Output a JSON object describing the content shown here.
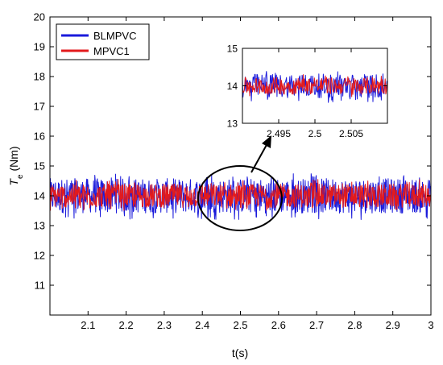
{
  "chart_data": [
    {
      "type": "line",
      "title": "",
      "xlabel": "t(s)",
      "ylabel_main": "T",
      "ylabel_sub": "e",
      "ylabel_unit": " (Nm)",
      "xlim": [
        2.0,
        3.0
      ],
      "ylim": [
        10.0,
        20.0
      ],
      "x_ticks": [
        2.1,
        2.2,
        2.3,
        2.4,
        2.5,
        2.6,
        2.7,
        2.8,
        2.9,
        3.0
      ],
      "x_tick_labels": [
        "2.1",
        "2.2",
        "2.3",
        "2.4",
        "2.5",
        "2.6",
        "2.7",
        "2.8",
        "2.9",
        "3"
      ],
      "y_ticks": [
        11,
        12,
        13,
        14,
        15,
        16,
        17,
        18,
        19,
        20
      ],
      "y_tick_labels": [
        "11",
        "12",
        "13",
        "14",
        "15",
        "16",
        "17",
        "18",
        "19",
        "20"
      ],
      "grid": false,
      "legend_position": "top-left",
      "series": [
        {
          "name": "BLMPVC",
          "color": "#1a1adb",
          "mean": 14.0,
          "ripple_min": 13.2,
          "ripple_max": 14.75
        },
        {
          "name": "MPVC1",
          "color": "#e31a1c",
          "mean": 14.0,
          "ripple_min": 13.5,
          "ripple_max": 14.55
        }
      ],
      "annotations": [
        {
          "type": "ellipse",
          "center": [
            2.5,
            14.0
          ],
          "note": "zoomed region"
        },
        {
          "type": "arrow",
          "from": [
            2.5,
            15.0
          ],
          "to": [
            2.58,
            17.2
          ]
        }
      ]
    },
    {
      "type": "line",
      "title": "",
      "xlim": [
        2.49,
        2.51
      ],
      "ylim": [
        13.0,
        15.0
      ],
      "x_ticks": [
        2.495,
        2.5,
        2.505
      ],
      "x_tick_labels": [
        "2.495",
        "2.5",
        "2.505"
      ],
      "y_ticks": [
        13,
        14,
        15
      ],
      "y_tick_labels": [
        "13",
        "14",
        "15"
      ],
      "series": [
        {
          "name": "BLMPVC",
          "color": "#1a1adb",
          "mean": 14.0,
          "ripple_min": 13.55,
          "ripple_max": 14.4
        },
        {
          "name": "MPVC1",
          "color": "#e31a1c",
          "mean": 14.0,
          "ripple_min": 13.7,
          "ripple_max": 14.3
        }
      ]
    }
  ]
}
